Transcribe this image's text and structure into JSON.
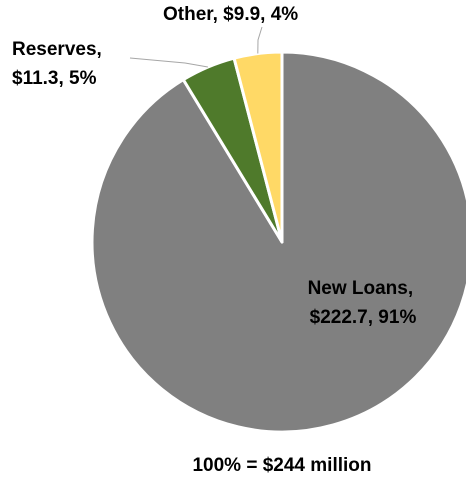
{
  "chart_data": {
    "type": "pie",
    "slices": [
      {
        "name": "New Loans",
        "value": 222.7,
        "percent": 91,
        "color": "#808080",
        "label_lines": [
          "New Loans,",
          "$222.7, 91%"
        ]
      },
      {
        "name": "Reserves",
        "value": 11.3,
        "percent": 5,
        "color": "#4f7a2b",
        "label_lines": [
          "Reserves,",
          "$11.3, 5%"
        ]
      },
      {
        "name": "Other",
        "value": 9.9,
        "percent": 4,
        "color": "#ffd966",
        "label_lines": [
          "Other, $9.9, 4%"
        ]
      }
    ],
    "total_label": "100% = $244 million",
    "slice_border_color": "#ffffff"
  }
}
